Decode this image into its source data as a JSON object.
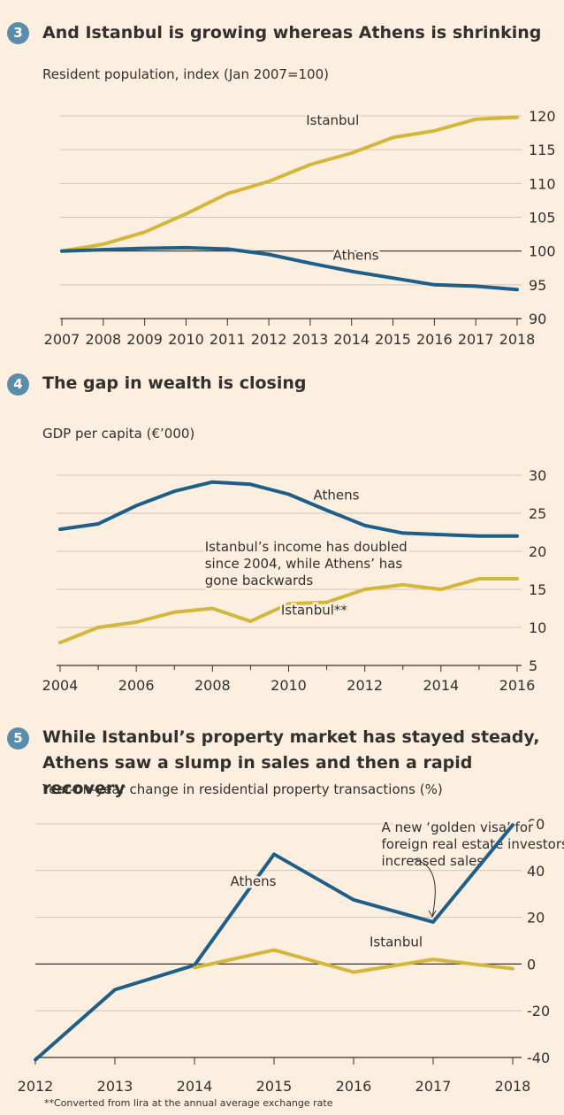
{
  "chart_data": [
    {
      "type": "line",
      "number": "3",
      "title": "And Istanbul is growing whereas Athens is shrinking",
      "subtitle": "Resident population, index (Jan 2007=100)",
      "x": [
        2007,
        2008,
        2009,
        2010,
        2011,
        2012,
        2013,
        2014,
        2015,
        2016,
        2017,
        2018
      ],
      "xticks": [
        "2007",
        "2008",
        "2009",
        "2010",
        "2011",
        "2012",
        "2013",
        "2014",
        "2015",
        "2016",
        "2017",
        "2018"
      ],
      "ylim": [
        90,
        120
      ],
      "yticks": [
        "90",
        "95",
        "100",
        "105",
        "110",
        "115",
        "120"
      ],
      "grid": true,
      "series": [
        {
          "name": "Istanbul",
          "color": "#d4b73a",
          "points": [
            [
              2007,
              100
            ],
            [
              2008,
              101
            ],
            [
              2009,
              102.8
            ],
            [
              2010,
              105.5
            ],
            [
              2011,
              108.5
            ],
            [
              2012,
              110.3
            ],
            [
              2013,
              112.8
            ],
            [
              2014,
              114.5
            ],
            [
              2015,
              116.8
            ],
            [
              2016,
              117.8
            ],
            [
              2017,
              119.5
            ],
            [
              2018,
              119.8
            ]
          ]
        },
        {
          "name": "Athens",
          "color": "#1e5f8a",
          "points": [
            [
              2007,
              100
            ],
            [
              2008,
              100.2
            ],
            [
              2009,
              100.4
            ],
            [
              2010,
              100.5
            ],
            [
              2011,
              100.3
            ],
            [
              2012,
              99.5
            ],
            [
              2013,
              98.2
            ],
            [
              2014,
              97
            ],
            [
              2015,
              96
            ],
            [
              2016,
              95
            ],
            [
              2017,
              94.8
            ],
            [
              2018,
              94.3
            ]
          ]
        }
      ],
      "labels": [
        {
          "text": "Istanbul",
          "x": 2012.9,
          "y": 118.7
        },
        {
          "text": "Athens",
          "x": 2013.55,
          "y": 98.7
        }
      ]
    },
    {
      "type": "line",
      "number": "4",
      "title": "The gap in wealth is closing",
      "subtitle": "GDP per capita (€’000)",
      "x": [
        2004,
        2006,
        2008,
        2010,
        2012,
        2014,
        2016
      ],
      "xticks": [
        "2004",
        "2006",
        "2008",
        "2010",
        "2012",
        "2014",
        "2016"
      ],
      "ylim": [
        5,
        30
      ],
      "yticks": [
        "5",
        "10",
        "15",
        "20",
        "25",
        "30"
      ],
      "grid": true,
      "series": [
        {
          "name": "Athens",
          "color": "#1e5f8a",
          "points": [
            [
              2004,
              22.9
            ],
            [
              2005,
              23.6
            ],
            [
              2006,
              26.0
            ],
            [
              2007,
              27.9
            ],
            [
              2008,
              29.1
            ],
            [
              2009,
              28.8
            ],
            [
              2010,
              27.5
            ],
            [
              2011,
              25.4
            ],
            [
              2012,
              23.4
            ],
            [
              2013,
              22.4
            ],
            [
              2014,
              22.2
            ],
            [
              2015,
              22.0
            ],
            [
              2016,
              22.0
            ]
          ]
        },
        {
          "name": "Istanbul**",
          "color": "#d4b73a",
          "points": [
            [
              2004,
              8.0
            ],
            [
              2005,
              10.0
            ],
            [
              2006,
              10.7
            ],
            [
              2007,
              12.0
            ],
            [
              2008,
              12.5
            ],
            [
              2009,
              10.8
            ],
            [
              2010,
              13.1
            ],
            [
              2011,
              13.3
            ],
            [
              2012,
              15.0
            ],
            [
              2013,
              15.6
            ],
            [
              2014,
              15.0
            ],
            [
              2015,
              16.4
            ],
            [
              2016,
              16.4
            ]
          ]
        }
      ],
      "labels": [
        {
          "text": "Athens",
          "x": 2010.65,
          "y": 26.8
        },
        {
          "text": "Istanbul**",
          "x": 2009.8,
          "y": 11.7
        }
      ],
      "annotation": {
        "lines": [
          "Istanbul’s income has doubled",
          "since 2004, while Athens’ has",
          "gone backwards"
        ],
        "x": 2007.8,
        "y": 20
      }
    },
    {
      "type": "line",
      "number": "5",
      "title": "While Istanbul’s property market has stayed steady, Athens saw a slump in sales and then a rapid recovery",
      "subtitle": "Year-on-year change in residential property transactions (%)",
      "x": [
        2012,
        2013,
        2014,
        2015,
        2016,
        2017,
        2018
      ],
      "xticks": [
        "2012",
        "2013",
        "2014",
        "2015",
        "2016",
        "2017",
        "2018"
      ],
      "ylim": [
        -40,
        60
      ],
      "yticks": [
        "-40",
        "-20",
        "0",
        "20",
        "40",
        "60"
      ],
      "grid": true,
      "series": [
        {
          "name": "Athens",
          "color": "#1e5f8a",
          "points": [
            [
              2012,
              -41
            ],
            [
              2013,
              -11
            ],
            [
              2014,
              -0.5
            ],
            [
              2015,
              47
            ],
            [
              2016,
              27.5
            ],
            [
              2017,
              18
            ],
            [
              2018,
              59.5
            ]
          ]
        },
        {
          "name": "Istanbul",
          "color": "#d4b73a",
          "points": [
            [
              2014,
              -1.5
            ],
            [
              2015,
              6
            ],
            [
              2016,
              -3.5
            ],
            [
              2017,
              2
            ],
            [
              2018,
              -2
            ]
          ]
        }
      ],
      "labels": [
        {
          "text": "Athens",
          "x": 2014.45,
          "y": 33.5
        },
        {
          "text": "Istanbul",
          "x": 2016.2,
          "y": 7.5
        }
      ],
      "annotation": {
        "lines": [
          "A new ‘golden visa’ for",
          "foreign real estate investors",
          "increased sales"
        ],
        "x": 2016.35,
        "y": 56.5
      }
    }
  ],
  "footnote": "**Converted from lira at the annual average exchange rate"
}
